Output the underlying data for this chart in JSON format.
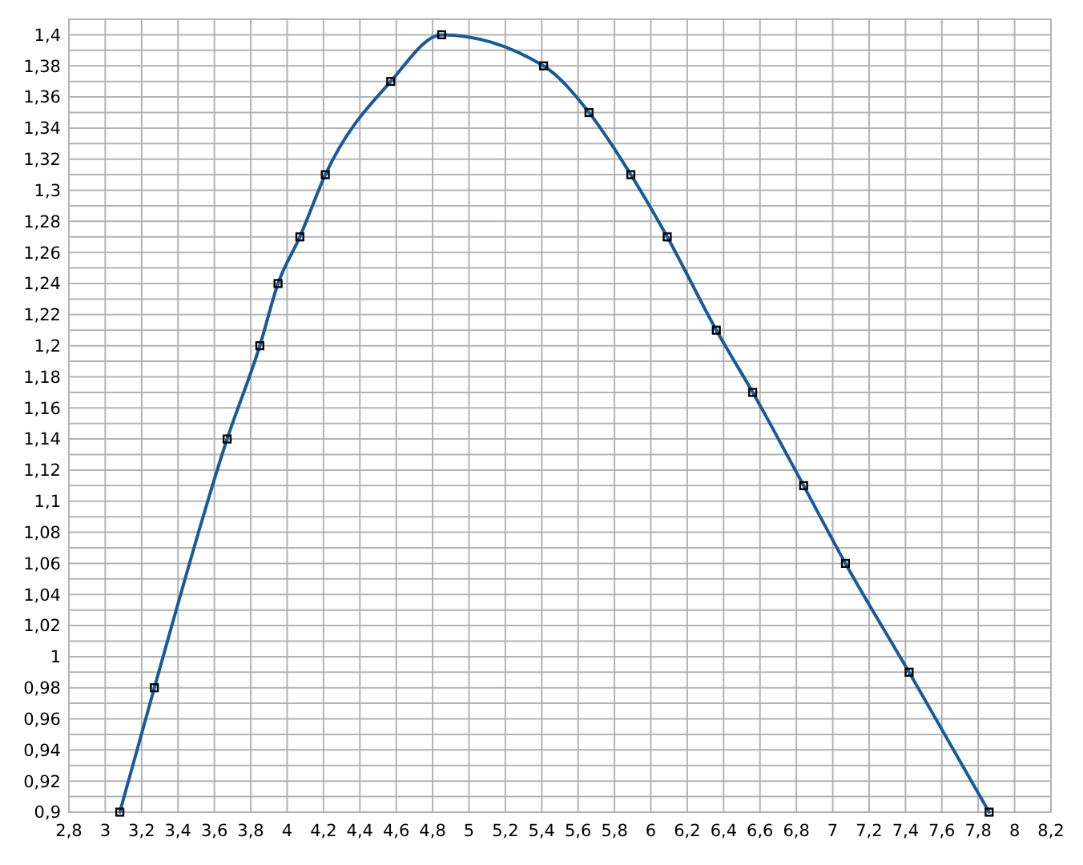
{
  "chart_data": {
    "type": "line",
    "x": [
      3.08,
      3.27,
      3.67,
      3.85,
      3.95,
      4.07,
      4.21,
      4.57,
      4.85,
      5.41,
      5.66,
      5.89,
      6.09,
      6.36,
      6.56,
      6.84,
      7.07,
      7.42,
      7.86
    ],
    "series": [
      {
        "color": "#1a5a96",
        "values": [
          0.9,
          0.98,
          1.14,
          1.2,
          1.24,
          1.27,
          1.31,
          1.37,
          1.4,
          1.38,
          1.35,
          1.31,
          1.27,
          1.21,
          1.17,
          1.11,
          1.06,
          0.99,
          0.9
        ]
      }
    ],
    "xlim": [
      2.8,
      8.2
    ],
    "xticks": [
      {
        "value": 2.8,
        "label": "2,8"
      },
      3,
      {
        "value": 3.2,
        "label": "3,2"
      },
      {
        "value": 3.4,
        "label": "3,4"
      },
      {
        "value": 3.6,
        "label": "3,6"
      },
      {
        "value": 3.8,
        "label": "3,8"
      },
      4,
      {
        "value": 4.2,
        "label": "4,2"
      },
      {
        "value": 4.4,
        "label": "4,4"
      },
      {
        "value": 4.6,
        "label": "4,6"
      },
      {
        "value": 4.8,
        "label": "4,8"
      },
      5,
      {
        "value": 5.2,
        "label": "5,2"
      },
      {
        "value": 5.4,
        "label": "5,4"
      },
      {
        "value": 5.6,
        "label": "5,6"
      },
      {
        "value": 5.8,
        "label": "5,8"
      },
      6,
      {
        "value": 6.2,
        "label": "6,2"
      },
      {
        "value": 6.4,
        "label": "6,4"
      },
      {
        "value": 6.6,
        "label": "6,6"
      },
      {
        "value": 6.8,
        "label": "6,8"
      },
      7,
      {
        "value": 7.2,
        "label": "7,2"
      },
      {
        "value": 7.4,
        "label": "7,4"
      },
      {
        "value": 7.6,
        "label": "7,6"
      },
      {
        "value": 7.8,
        "label": "7,8"
      },
      8,
      {
        "value": 8.2,
        "label": "8,2"
      }
    ],
    "ylim": [
      0.9,
      1.41
    ],
    "yticks": [
      {
        "value": 0.9,
        "label": "0,9"
      },
      {
        "value": 0.91,
        "label": null
      },
      {
        "value": 0.92,
        "label": "0,92"
      },
      {
        "value": 0.93,
        "label": null
      },
      {
        "value": 0.94,
        "label": "0,94"
      },
      {
        "value": 0.95,
        "label": null
      },
      {
        "value": 0.96,
        "label": "0,96"
      },
      {
        "value": 0.97,
        "label": null
      },
      {
        "value": 0.98,
        "label": "0,98"
      },
      {
        "value": 0.99,
        "label": null
      },
      1,
      {
        "value": 1.01,
        "label": null
      },
      {
        "value": 1.02,
        "label": "1,02"
      },
      {
        "value": 1.03,
        "label": null
      },
      {
        "value": 1.04,
        "label": "1,04"
      },
      {
        "value": 1.05,
        "label": null
      },
      {
        "value": 1.06,
        "label": "1,06"
      },
      {
        "value": 1.07,
        "label": null
      },
      {
        "value": 1.08,
        "label": "1,08"
      },
      {
        "value": 1.09,
        "label": null
      },
      {
        "value": 1.1,
        "label": "1,1"
      },
      {
        "value": 1.11,
        "label": null
      },
      {
        "value": 1.12,
        "label": "1,12"
      },
      {
        "value": 1.13,
        "label": null
      },
      {
        "value": 1.14,
        "label": "1,14"
      },
      {
        "value": 1.15,
        "label": null
      },
      {
        "value": 1.16,
        "label": "1,16"
      },
      {
        "value": 1.17,
        "label": null
      },
      {
        "value": 1.18,
        "label": "1,18"
      },
      {
        "value": 1.19,
        "label": null
      },
      {
        "value": 1.2,
        "label": "1,2"
      },
      {
        "value": 1.21,
        "label": null
      },
      {
        "value": 1.22,
        "label": "1,22"
      },
      {
        "value": 1.23,
        "label": null
      },
      {
        "value": 1.24,
        "label": "1,24"
      },
      {
        "value": 1.25,
        "label": null
      },
      {
        "value": 1.26,
        "label": "1,26"
      },
      {
        "value": 1.27,
        "label": null
      },
      {
        "value": 1.28,
        "label": "1,28"
      },
      {
        "value": 1.29,
        "label": null
      },
      {
        "value": 1.3,
        "label": "1,3"
      },
      {
        "value": 1.31,
        "label": null
      },
      {
        "value": 1.32,
        "label": "1,32"
      },
      {
        "value": 1.33,
        "label": null
      },
      {
        "value": 1.34,
        "label": "1,34"
      },
      {
        "value": 1.35,
        "label": null
      },
      {
        "value": 1.36,
        "label": "1,36"
      },
      {
        "value": 1.37,
        "label": null
      },
      {
        "value": 1.38,
        "label": "1,38"
      },
      {
        "value": 1.39,
        "label": null
      },
      {
        "value": 1.4,
        "label": "1,4"
      },
      {
        "value": 1.41,
        "label": null
      }
    ],
    "grid": true,
    "marker": "square",
    "line_style": "solid"
  }
}
